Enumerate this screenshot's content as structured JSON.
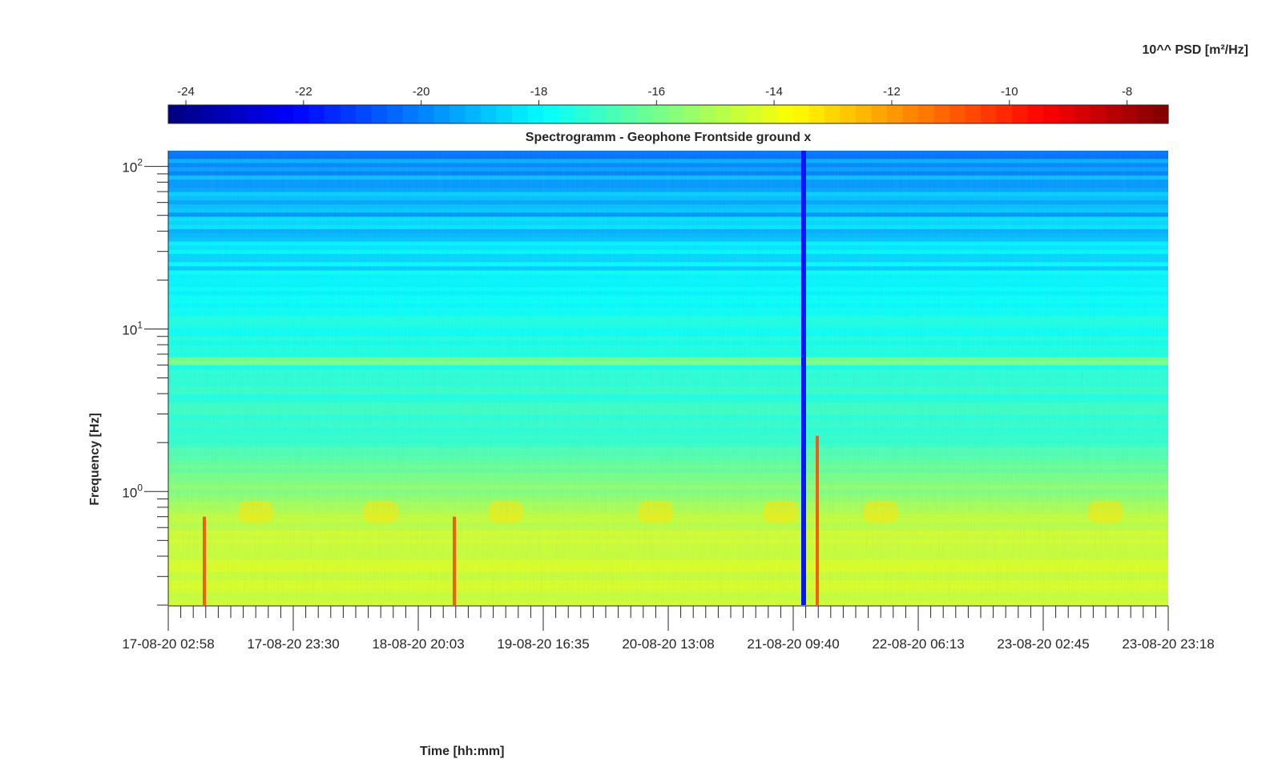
{
  "chart_data": {
    "type": "heatmap",
    "title": "Spectrogramm - Geophone Frontside ground x",
    "xlabel": "Time [hh:mm]",
    "ylabel": "Frequency [Hz]",
    "yscale": "log",
    "ylim": [
      0.2,
      125
    ],
    "xlim": [
      "17-08-20 02:58",
      "23-08-20 23:18"
    ],
    "x_ticks": [
      "17-08-20 02:58",
      "17-08-20 23:30",
      "18-08-20 20:03",
      "19-08-20 16:35",
      "20-08-20 13:08",
      "21-08-20 09:40",
      "22-08-20 06:13",
      "23-08-20 02:45",
      "23-08-20 23:18"
    ],
    "y_ticks": [
      {
        "base": "10",
        "exp": "0",
        "value": 1
      },
      {
        "base": "10",
        "exp": "1",
        "value": 10
      },
      {
        "base": "10",
        "exp": "2",
        "value": 100
      }
    ],
    "colorbar": {
      "label": "10^^ PSD [m²/Hz]",
      "colormap": "jet",
      "range": [
        -24.3,
        -7.3
      ],
      "ticks": [
        "-24",
        "-22",
        "-20",
        "-18",
        "-16",
        "-14",
        "-12",
        "-10",
        "-8"
      ]
    },
    "features": {
      "data_gap_time": "21-08-20 09:40",
      "persistent_line_hz": 6.2,
      "high_freq_level": -20,
      "mid_freq_level": -17,
      "low_freq_level": -14.5,
      "transient_events": [
        "17-08-20 02:58",
        "18-08-20 20:03",
        "21-08-20 09:40"
      ]
    }
  }
}
